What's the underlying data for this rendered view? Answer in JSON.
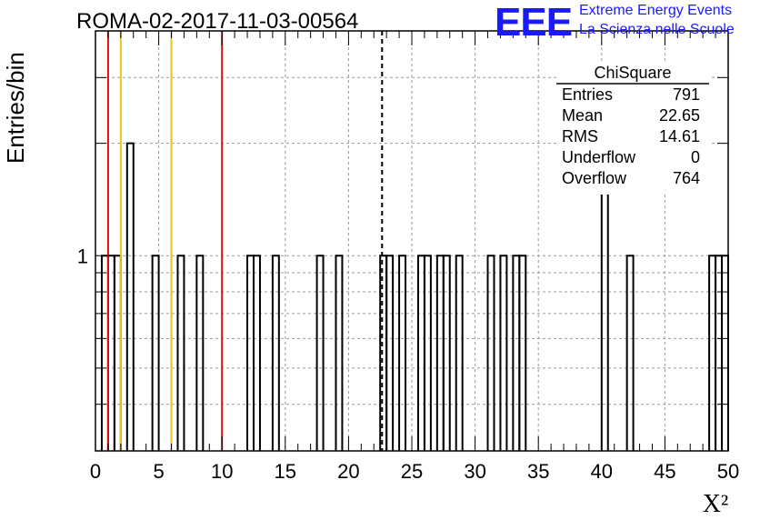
{
  "header": {
    "title": "ROMA-02-2017-11-03-00564",
    "logo_letters": "EEE",
    "logo_line1": "Extreme Energy Events",
    "logo_line2": "La Scienza nelle Scuole"
  },
  "stats": {
    "name": "ChiSquare",
    "rows": [
      {
        "label": "Entries",
        "value": "791"
      },
      {
        "label": "Mean",
        "value": "22.65"
      },
      {
        "label": "RMS",
        "value": "14.61"
      },
      {
        "label": "Underflow",
        "value": "0"
      },
      {
        "label": "Overflow",
        "value": "764"
      }
    ]
  },
  "colors": {
    "red_line": "#e01010",
    "yellow_line": "#f0c020",
    "axis": "#000000",
    "grid": "#9a9a9a"
  },
  "chart_data": {
    "type": "bar",
    "title": "ROMA-02-2017-11-03-00564",
    "xlabel": "X²",
    "ylabel": "Entries/bin",
    "xlim": [
      0,
      50
    ],
    "ylim": [
      0.3,
      4
    ],
    "yscale": "log",
    "grid": true,
    "bin_width": 0.5,
    "x_ticks": [
      "0",
      "5",
      "10",
      "15",
      "20",
      "25",
      "30",
      "35",
      "40",
      "45",
      "50"
    ],
    "y_ticks": [
      "1"
    ],
    "bins": [
      {
        "x": 0.5,
        "y": 1
      },
      {
        "x": 1.0,
        "y": 1
      },
      {
        "x": 1.5,
        "y": 1
      },
      {
        "x": 2.5,
        "y": 2
      },
      {
        "x": 4.5,
        "y": 1
      },
      {
        "x": 6.5,
        "y": 1
      },
      {
        "x": 8.0,
        "y": 1
      },
      {
        "x": 12.0,
        "y": 1
      },
      {
        "x": 12.5,
        "y": 1
      },
      {
        "x": 14.0,
        "y": 1
      },
      {
        "x": 17.5,
        "y": 1
      },
      {
        "x": 19.0,
        "y": 1
      },
      {
        "x": 22.5,
        "y": 1
      },
      {
        "x": 23.0,
        "y": 1
      },
      {
        "x": 24.0,
        "y": 1
      },
      {
        "x": 25.5,
        "y": 1
      },
      {
        "x": 26.0,
        "y": 1
      },
      {
        "x": 27.0,
        "y": 1
      },
      {
        "x": 27.5,
        "y": 1
      },
      {
        "x": 28.5,
        "y": 1
      },
      {
        "x": 31.0,
        "y": 1
      },
      {
        "x": 32.0,
        "y": 1
      },
      {
        "x": 33.0,
        "y": 1
      },
      {
        "x": 33.5,
        "y": 1
      },
      {
        "x": 40.0,
        "y": 2
      },
      {
        "x": 42.0,
        "y": 1
      },
      {
        "x": 48.5,
        "y": 1
      },
      {
        "x": 49.0,
        "y": 1
      },
      {
        "x": 49.5,
        "y": 1
      }
    ],
    "vlines": [
      {
        "x": 1.0,
        "color": "red"
      },
      {
        "x": 2.0,
        "color": "yellow"
      },
      {
        "x": 6.0,
        "color": "yellow"
      },
      {
        "x": 10.0,
        "color": "red"
      },
      {
        "x": 22.65,
        "color": "black",
        "style": "dashed"
      }
    ]
  }
}
